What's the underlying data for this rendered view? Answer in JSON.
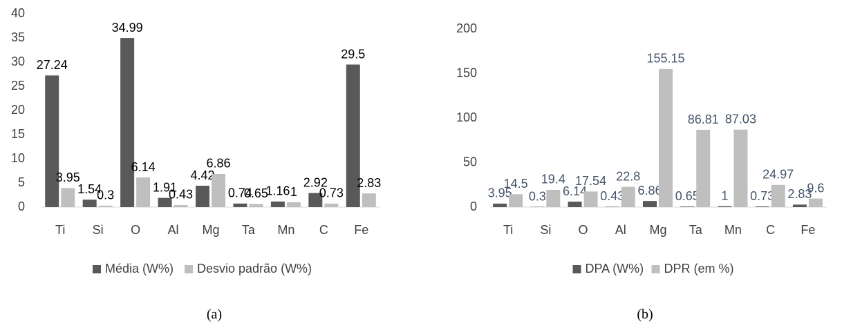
{
  "chart_data": [
    {
      "type": "bar",
      "caption": "(a)",
      "categories": [
        "Ti",
        "Si",
        "O",
        "Al",
        "Mg",
        "Ta",
        "Mn",
        "C",
        "Fe"
      ],
      "series": [
        {
          "name": "Média (W%)",
          "color": "#595959",
          "values": [
            27.24,
            1.54,
            34.99,
            1.91,
            4.42,
            0.74,
            1.16,
            2.92,
            29.5
          ]
        },
        {
          "name": "Desvio padrão (W%)",
          "color": "#bfbfbf",
          "values": [
            3.95,
            0.3,
            6.14,
            0.43,
            6.86,
            0.65,
            1,
            0.73,
            2.83
          ]
        }
      ],
      "ylim": [
        0,
        40
      ],
      "yticks": [
        0,
        5,
        10,
        15,
        20,
        25,
        30,
        35,
        40
      ],
      "grid": false,
      "legend": "bottom",
      "label_color": "#000000"
    },
    {
      "type": "bar",
      "caption": "(b)",
      "categories": [
        "Ti",
        "Si",
        "O",
        "Al",
        "Mg",
        "Ta",
        "Mn",
        "C",
        "Fe"
      ],
      "series": [
        {
          "name": "DPA (W%)",
          "color": "#595959",
          "values": [
            3.95,
            0.3,
            6.14,
            0.43,
            6.86,
            0.65,
            1,
            0.73,
            2.83
          ]
        },
        {
          "name": "DPR (em %)",
          "color": "#bfbfbf",
          "values": [
            14.5,
            19.4,
            17.54,
            22.8,
            155.15,
            86.81,
            87.03,
            24.97,
            9.6
          ]
        }
      ],
      "ylim": [
        0,
        200
      ],
      "yticks": [
        0,
        50,
        100,
        150,
        200
      ],
      "grid": false,
      "legend": "bottom",
      "label_color": "#44546a"
    }
  ]
}
